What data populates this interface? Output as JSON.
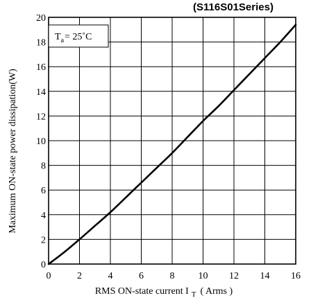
{
  "chart_data": {
    "type": "line",
    "title": "(S116S01Series)",
    "xlabel": "RMS ON-state current I",
    "xlabel_sub": "T",
    "xlabel_unit": "( Arms )",
    "ylabel": "Maximum ON-state power dissipation(W)",
    "annotation": {
      "main": "T",
      "sub": "a",
      "text": "= 25˚C"
    },
    "xlim": [
      0,
      16
    ],
    "ylim": [
      0,
      20
    ],
    "xticks": [
      0,
      2,
      4,
      6,
      8,
      10,
      12,
      14,
      16
    ],
    "yticks": [
      0,
      2,
      4,
      6,
      8,
      10,
      12,
      14,
      16,
      18,
      20
    ],
    "grid": true,
    "series": [
      {
        "x": [
          0,
          1,
          2,
          3,
          4,
          5,
          6,
          7,
          8,
          9,
          10,
          11,
          12,
          13,
          14,
          15,
          16
        ],
        "y": [
          0,
          0.95,
          2.0,
          3.1,
          4.2,
          5.4,
          6.6,
          7.8,
          9.0,
          10.3,
          11.6,
          12.8,
          14.1,
          15.4,
          16.7,
          18.0,
          19.4
        ]
      }
    ]
  }
}
